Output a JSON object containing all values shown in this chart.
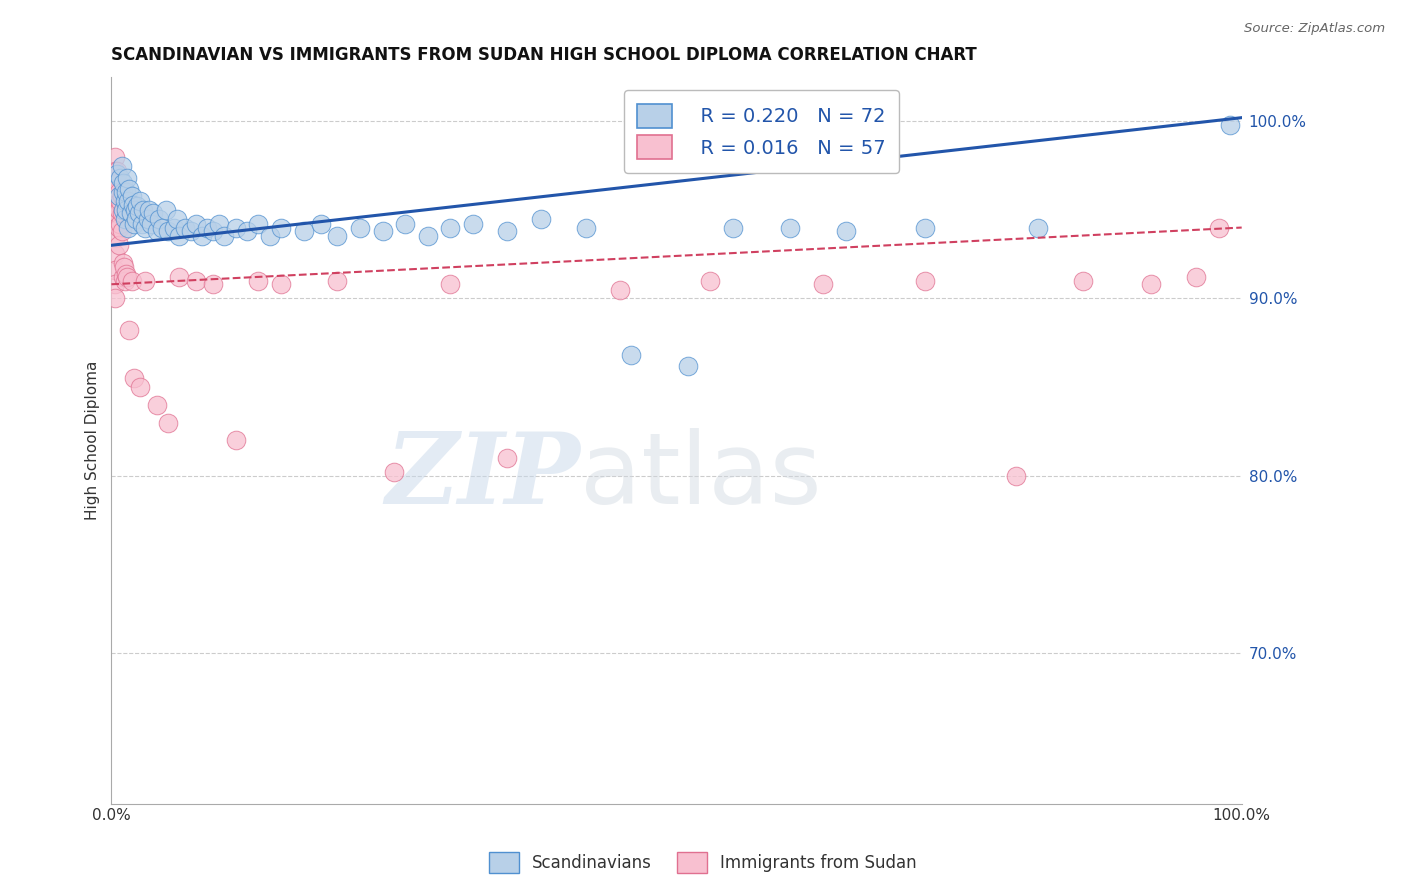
{
  "title": "SCANDINAVIAN VS IMMIGRANTS FROM SUDAN HIGH SCHOOL DIPLOMA CORRELATION CHART",
  "source": "Source: ZipAtlas.com",
  "ylabel": "High School Diploma",
  "xlim": [
    0,
    1.0
  ],
  "ylim": [
    0.615,
    1.025
  ],
  "y_tick_labels_right": [
    "70.0%",
    "80.0%",
    "90.0%",
    "100.0%"
  ],
  "y_tick_values_right": [
    0.7,
    0.8,
    0.9,
    1.0
  ],
  "blue_R": 0.22,
  "blue_N": 72,
  "pink_R": 0.016,
  "pink_N": 57,
  "blue_color": "#b8d0e8",
  "blue_edge_color": "#5090d0",
  "blue_line_color": "#2255aa",
  "pink_color": "#f8c0d0",
  "pink_edge_color": "#e07090",
  "pink_line_color": "#d04060",
  "background_color": "#ffffff",
  "grid_color": "#cccccc",
  "watermark_zip": "ZIP",
  "watermark_atlas": "atlas",
  "blue_trend_x0": 0.0,
  "blue_trend_y0": 0.93,
  "blue_trend_x1": 1.0,
  "blue_trend_y1": 1.002,
  "pink_trend_x0": 0.0,
  "pink_trend_y0": 0.908,
  "pink_trend_x1": 1.0,
  "pink_trend_y1": 0.94,
  "blue_scatter_x": [
    0.005,
    0.007,
    0.008,
    0.009,
    0.01,
    0.01,
    0.01,
    0.012,
    0.012,
    0.013,
    0.013,
    0.014,
    0.015,
    0.015,
    0.016,
    0.017,
    0.018,
    0.019,
    0.02,
    0.021,
    0.022,
    0.023,
    0.024,
    0.025,
    0.027,
    0.028,
    0.03,
    0.032,
    0.033,
    0.035,
    0.037,
    0.04,
    0.042,
    0.045,
    0.048,
    0.05,
    0.055,
    0.058,
    0.06,
    0.065,
    0.07,
    0.075,
    0.08,
    0.085,
    0.09,
    0.095,
    0.1,
    0.11,
    0.12,
    0.13,
    0.14,
    0.15,
    0.17,
    0.185,
    0.2,
    0.22,
    0.24,
    0.26,
    0.28,
    0.3,
    0.32,
    0.35,
    0.38,
    0.42,
    0.46,
    0.51,
    0.55,
    0.6,
    0.65,
    0.72,
    0.82,
    0.99
  ],
  "blue_scatter_y": [
    0.97,
    0.958,
    0.968,
    0.975,
    0.95,
    0.96,
    0.965,
    0.945,
    0.955,
    0.95,
    0.96,
    0.968,
    0.94,
    0.955,
    0.962,
    0.948,
    0.958,
    0.953,
    0.942,
    0.95,
    0.945,
    0.952,
    0.948,
    0.955,
    0.942,
    0.95,
    0.94,
    0.945,
    0.95,
    0.942,
    0.948,
    0.938,
    0.945,
    0.94,
    0.95,
    0.938,
    0.94,
    0.945,
    0.935,
    0.94,
    0.938,
    0.942,
    0.935,
    0.94,
    0.938,
    0.942,
    0.935,
    0.94,
    0.938,
    0.942,
    0.935,
    0.94,
    0.938,
    0.942,
    0.935,
    0.94,
    0.938,
    0.942,
    0.935,
    0.94,
    0.942,
    0.938,
    0.945,
    0.94,
    0.868,
    0.862,
    0.94,
    0.94,
    0.938,
    0.94,
    0.94,
    0.998
  ],
  "pink_scatter_x": [
    0.003,
    0.003,
    0.003,
    0.003,
    0.003,
    0.003,
    0.003,
    0.003,
    0.003,
    0.003,
    0.003,
    0.005,
    0.005,
    0.005,
    0.006,
    0.006,
    0.007,
    0.007,
    0.007,
    0.007,
    0.008,
    0.008,
    0.009,
    0.009,
    0.009,
    0.01,
    0.01,
    0.011,
    0.012,
    0.013,
    0.014,
    0.016,
    0.018,
    0.02,
    0.025,
    0.03,
    0.04,
    0.05,
    0.06,
    0.075,
    0.09,
    0.11,
    0.13,
    0.15,
    0.2,
    0.25,
    0.3,
    0.35,
    0.45,
    0.53,
    0.63,
    0.72,
    0.8,
    0.86,
    0.92,
    0.96,
    0.98
  ],
  "pink_scatter_y": [
    0.98,
    0.972,
    0.965,
    0.958,
    0.95,
    0.942,
    0.934,
    0.925,
    0.916,
    0.908,
    0.9,
    0.972,
    0.96,
    0.948,
    0.965,
    0.955,
    0.96,
    0.95,
    0.94,
    0.93,
    0.955,
    0.942,
    0.958,
    0.948,
    0.938,
    0.92,
    0.912,
    0.918,
    0.91,
    0.914,
    0.912,
    0.882,
    0.91,
    0.855,
    0.85,
    0.91,
    0.84,
    0.83,
    0.912,
    0.91,
    0.908,
    0.82,
    0.91,
    0.908,
    0.91,
    0.802,
    0.908,
    0.81,
    0.905,
    0.91,
    0.908,
    0.91,
    0.8,
    0.91,
    0.908,
    0.912,
    0.94
  ],
  "title_fontsize": 12,
  "axis_fontsize": 11,
  "tick_fontsize": 11,
  "legend_fontsize": 14
}
